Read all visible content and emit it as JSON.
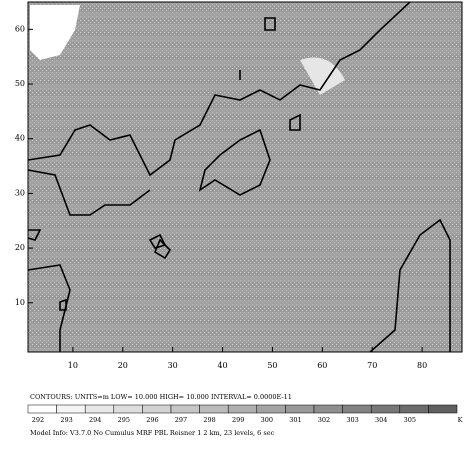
{
  "chart_data": {
    "type": "contour",
    "xlim": [
      1,
      88
    ],
    "ylim": [
      1,
      65
    ],
    "xticks": [
      10,
      20,
      30,
      40,
      50,
      60,
      70,
      80
    ],
    "yticks": [
      10,
      20,
      30,
      40,
      50,
      60
    ],
    "contour_info": "CONTOURS:  UNITS=m   LOW=  10.000     HIGH=  10.000     INTERVAL=  0.0000E-11",
    "colorbar": {
      "labels": [
        "292",
        "293",
        "294",
        "295",
        "296",
        "297",
        "298",
        "299",
        "300",
        "301",
        "302",
        "303",
        "304",
        "305"
      ],
      "unit": "K"
    },
    "model_info": "Model Info: V3.7.0  No Cumulus  MRF PBL   Reisner 1    2 km,  23 levels,   6 sec"
  }
}
